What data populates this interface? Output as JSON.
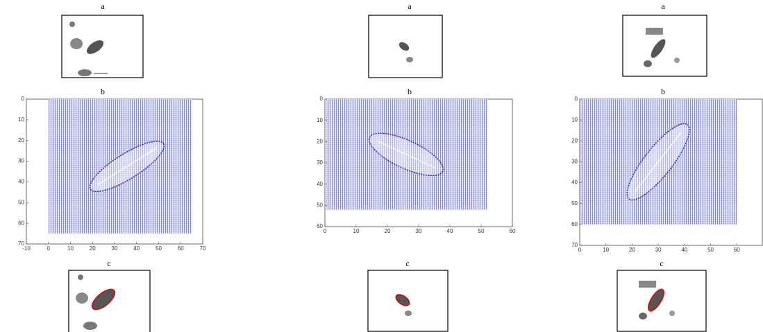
{
  "panels": [
    {
      "a_label": "a",
      "b_label": "b",
      "c_label": "c",
      "plot": {
        "xlim": [
          -10,
          70
        ],
        "ylim": [
          0,
          70
        ],
        "xticks": [
          -10,
          0,
          10,
          20,
          30,
          40,
          50,
          60,
          70
        ],
        "yticks": [
          0,
          10,
          20,
          30,
          40,
          50,
          60,
          70
        ],
        "field_x": [
          0,
          65
        ],
        "field_y": [
          0,
          65
        ]
      }
    },
    {
      "a_label": "a",
      "b_label": "b",
      "c_label": "c",
      "plot": {
        "xlim": [
          0,
          60
        ],
        "ylim": [
          0,
          60
        ],
        "xticks": [
          0,
          10,
          20,
          30,
          40,
          50,
          60
        ],
        "yticks": [
          0,
          10,
          20,
          30,
          40,
          50,
          60
        ],
        "field_x": [
          0,
          52
        ],
        "field_y": [
          0,
          52
        ]
      }
    },
    {
      "a_label": "a",
      "b_label": "b",
      "c_label": "c",
      "plot": {
        "xlim": [
          0,
          70
        ],
        "ylim": [
          0,
          70
        ],
        "xticks": [
          0,
          10,
          20,
          30,
          40,
          50,
          60
        ],
        "yticks": [
          0,
          10,
          20,
          30,
          40,
          50,
          60,
          70
        ],
        "field_x": [
          0,
          60
        ],
        "field_y": [
          0,
          60
        ]
      }
    }
  ]
}
